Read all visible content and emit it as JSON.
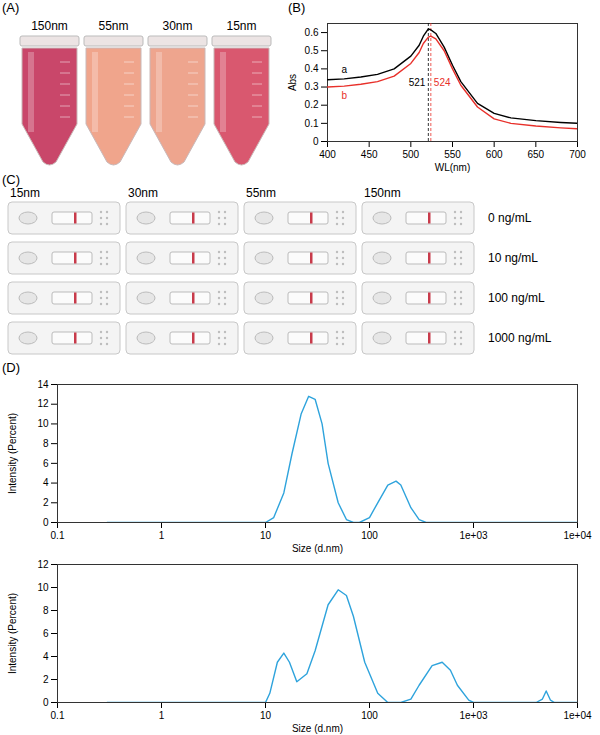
{
  "photos": {
    "A": {
      "panel": "(A)",
      "tubes": [
        {
          "label": "150nm",
          "color": "#c9476a"
        },
        {
          "label": "55nm",
          "color": "#f0a58c"
        },
        {
          "label": "30nm",
          "color": "#eea58e"
        },
        {
          "label": "15nm",
          "color": "#d9586f"
        }
      ]
    },
    "C": {
      "panel": "(C)",
      "columns": [
        "15nm",
        "30nm",
        "55nm",
        "150nm"
      ],
      "rows": [
        "0 ng/mL",
        "10 ng/mL",
        "100 ng/mL",
        "1000 ng/mL"
      ]
    }
  },
  "chart_data": [
    {
      "panel": "(B)",
      "type": "line",
      "x_label": "WL(nm)",
      "y_label": "Abs",
      "x": [
        400,
        420,
        440,
        460,
        480,
        500,
        510,
        515,
        521,
        524,
        530,
        540,
        550,
        560,
        580,
        600,
        620,
        650,
        680,
        700
      ],
      "series": [
        {
          "name": "a",
          "color": "#000000",
          "values": [
            0.34,
            0.345,
            0.355,
            0.37,
            0.4,
            0.47,
            0.53,
            0.58,
            0.62,
            0.615,
            0.595,
            0.52,
            0.42,
            0.33,
            0.21,
            0.155,
            0.13,
            0.115,
            0.105,
            0.1
          ]
        },
        {
          "name": "b",
          "color": "#e8302a",
          "values": [
            0.3,
            0.305,
            0.315,
            0.33,
            0.36,
            0.43,
            0.49,
            0.54,
            0.575,
            0.58,
            0.565,
            0.5,
            0.4,
            0.31,
            0.19,
            0.125,
            0.1,
            0.085,
            0.075,
            0.07
          ]
        }
      ],
      "xlim": [
        400,
        700
      ],
      "xticks": [
        400,
        450,
        500,
        550,
        600,
        650,
        700
      ],
      "ylim": [
        0,
        0.65
      ],
      "yticks": [
        0,
        0.1,
        0.2,
        0.3,
        0.4,
        0.5,
        0.6
      ],
      "annotations": [
        {
          "x": 521,
          "text": "521",
          "color": "#000000"
        },
        {
          "x": 524,
          "text": "524",
          "color": "#e8302a"
        }
      ]
    },
    {
      "panel": "(D)",
      "type": "line",
      "x_label": "Size (d.nm)",
      "y_label": "Intensity (Percent)",
      "log": "x",
      "x": [
        0.3,
        1,
        5,
        10,
        12,
        15,
        18,
        22,
        26,
        30,
        35,
        40,
        50,
        60,
        70,
        80,
        100,
        120,
        150,
        180,
        200,
        250,
        300,
        350,
        400,
        1000,
        5000,
        10000
      ],
      "series": [
        {
          "color": "#2ea3dc",
          "values": [
            0,
            0,
            0,
            0,
            0.5,
            3,
            7,
            11,
            12.8,
            12.5,
            10,
            6,
            2,
            0.3,
            0,
            0,
            0.5,
            2,
            3.8,
            4.2,
            3.8,
            1.5,
            0.3,
            0,
            0,
            0,
            0,
            0
          ]
        }
      ],
      "xlim": [
        0.1,
        10000
      ],
      "xticks": [
        0.1,
        1,
        10,
        100,
        {
          "value": 1000,
          "label": "1e+03"
        },
        {
          "value": 10000,
          "label": "1e+04"
        }
      ],
      "ylim": [
        0,
        14
      ],
      "yticks": [
        0,
        2,
        4,
        6,
        8,
        10,
        12,
        14
      ]
    },
    {
      "type": "line",
      "x_label": "Size (d.nm)",
      "y_label": "Intensity (Percent)",
      "log": "x",
      "x": [
        0.3,
        1,
        5,
        10,
        11,
        13,
        15,
        17,
        20,
        25,
        30,
        40,
        50,
        60,
        70,
        90,
        120,
        150,
        200,
        250,
        300,
        400,
        500,
        600,
        700,
        900,
        1000,
        3000,
        4000,
        4600,
        5000,
        5500,
        6000,
        10000
      ],
      "series": [
        {
          "color": "#2ea3dc",
          "values": [
            0,
            0,
            0,
            0,
            0.8,
            3.5,
            4.3,
            3.5,
            1.8,
            2.5,
            4.5,
            8.5,
            9.8,
            9.3,
            7.5,
            3.5,
            0.8,
            0,
            0,
            0.3,
            1.5,
            3.2,
            3.5,
            2.8,
            1.5,
            0.2,
            0,
            0,
            0,
            0.3,
            1.0,
            0.2,
            0,
            0
          ]
        }
      ],
      "xlim": [
        0.1,
        10000
      ],
      "xticks": [
        0.1,
        1,
        10,
        100,
        {
          "value": 1000,
          "label": "1e+03"
        },
        {
          "value": 10000,
          "label": "1e+04"
        }
      ],
      "ylim": [
        0,
        12
      ],
      "yticks": [
        0,
        2,
        4,
        6,
        8,
        10,
        12
      ]
    }
  ]
}
